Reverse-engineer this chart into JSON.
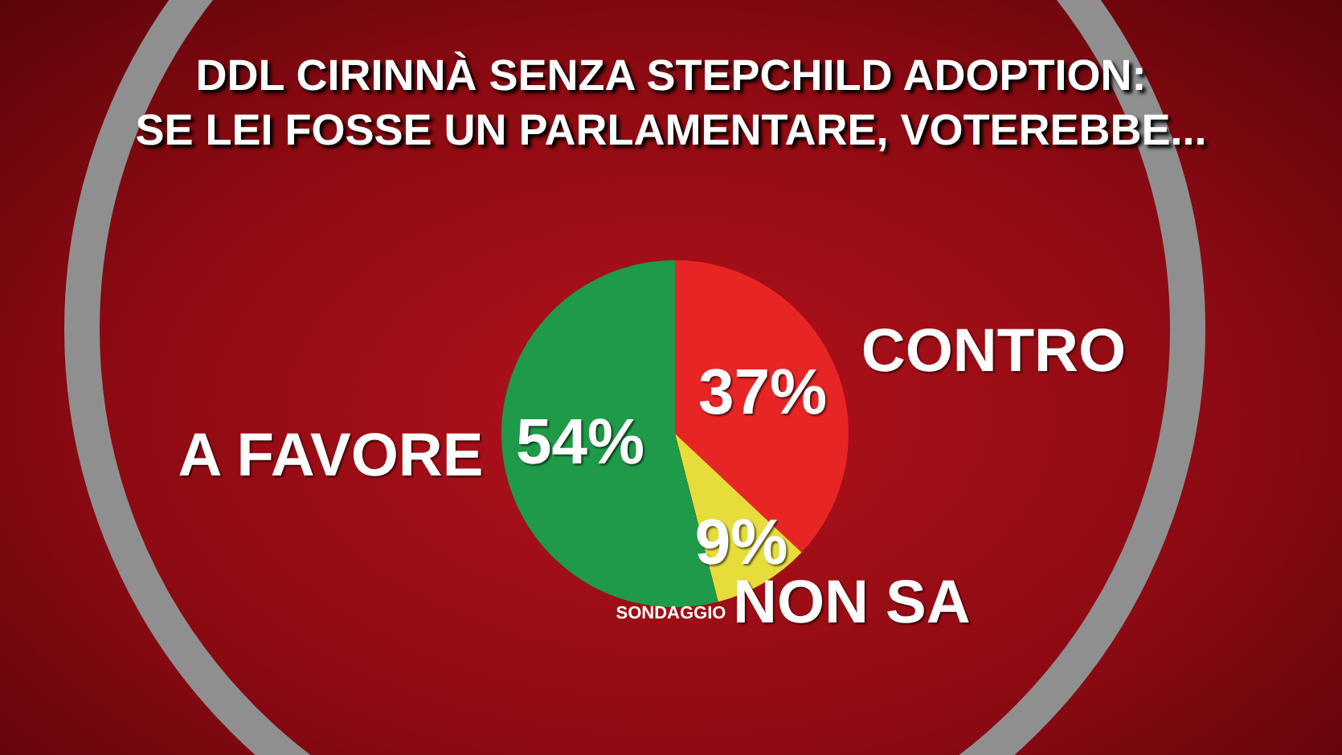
{
  "chart_data": {
    "type": "pie",
    "title": "DDL CIRINNÀ SENZA STEPCHILD ADOPTION:\nSE LEI FOSSE UN PARLAMENTARE, VOTEREBBE...",
    "categories": [
      "CONTRO",
      "NON SA",
      "A FAVORE"
    ],
    "values": [
      37,
      9,
      54
    ],
    "value_labels": [
      "37%",
      "9%",
      "54%"
    ],
    "colors": [
      "#e82525",
      "#e6dc3a",
      "#1f9a48"
    ],
    "legend": false,
    "annotations": [
      "SONDAGGIO"
    ]
  }
}
